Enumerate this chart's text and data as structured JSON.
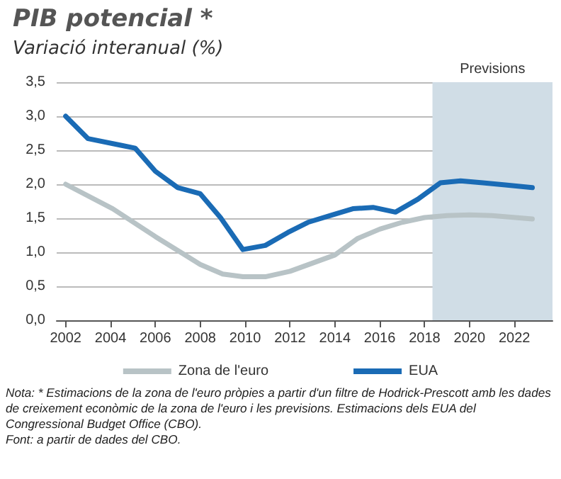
{
  "chart_data": {
    "type": "line",
    "title": "PIB potencial *",
    "subtitle": "Variació interanual (%)",
    "series": [
      {
        "name": "Zona de l'euro",
        "color": "#b8c3c6",
        "x": [
          2002,
          2004.1,
          2006,
          2008,
          2009,
          2009.9,
          2010.9,
          2012,
          2014,
          2015,
          2016,
          2017,
          2018,
          2019,
          2020,
          2021,
          2022.8
        ],
        "values": [
          2.0,
          1.64,
          1.23,
          0.82,
          0.68,
          0.64,
          0.64,
          0.72,
          0.96,
          1.2,
          1.34,
          1.44,
          1.51,
          1.54,
          1.55,
          1.54,
          1.49
        ]
      },
      {
        "name": "EUA",
        "color": "#1a6bb5",
        "x": [
          2002,
          2003,
          2004.5,
          2005.1,
          2006,
          2007,
          2008,
          2008.9,
          2009.9,
          2010.9,
          2011.9,
          2012.8,
          2013.8,
          2014.8,
          2015.7,
          2016.7,
          2017.7,
          2018.7,
          2019.6,
          2020.6,
          2021.6,
          2022.8
        ],
        "values": [
          3.0,
          2.67,
          2.57,
          2.53,
          2.19,
          1.95,
          1.86,
          1.51,
          1.04,
          1.1,
          1.29,
          1.44,
          1.54,
          1.64,
          1.66,
          1.59,
          1.78,
          2.02,
          2.05,
          2.02,
          1.99,
          1.95
        ]
      }
    ],
    "xlim": [
      2001.6,
      2023.7
    ],
    "xticks": [
      2002,
      2004,
      2006,
      2008,
      2010,
      2012,
      2014,
      2016,
      2018,
      2020,
      2022
    ],
    "ylim": [
      0,
      3.5
    ],
    "yticks": [
      {
        "value": 0,
        "label": "0,0"
      },
      {
        "value": 0.5,
        "label": "0,5"
      },
      {
        "value": 1,
        "label": "1,0"
      },
      {
        "value": 1.5,
        "label": "1,5"
      },
      {
        "value": 2,
        "label": "2,0"
      },
      {
        "value": 2.5,
        "label": "2,5"
      },
      {
        "value": 3,
        "label": "3,0"
      },
      {
        "value": 3.5,
        "label": "3,5"
      }
    ],
    "bands": [
      {
        "axis": "x",
        "from": 2018.35,
        "to": 2023.7,
        "label": "Previsions",
        "color": "#d0dde6"
      }
    ],
    "grid": "y",
    "legend": "bottom",
    "marker": "none",
    "line_style": "solid",
    "annotations": [
      "Nota: * Estimacions de la zona de l'euro pròpies a partir d'un filtre de Hodrick-Prescott amb les dades de creixement econòmic de la zona de l'euro i les previsions. Estimacions dels EUA del Congressional Budget Office (CBO).",
      "Font: a partir de dades del CBO."
    ]
  }
}
